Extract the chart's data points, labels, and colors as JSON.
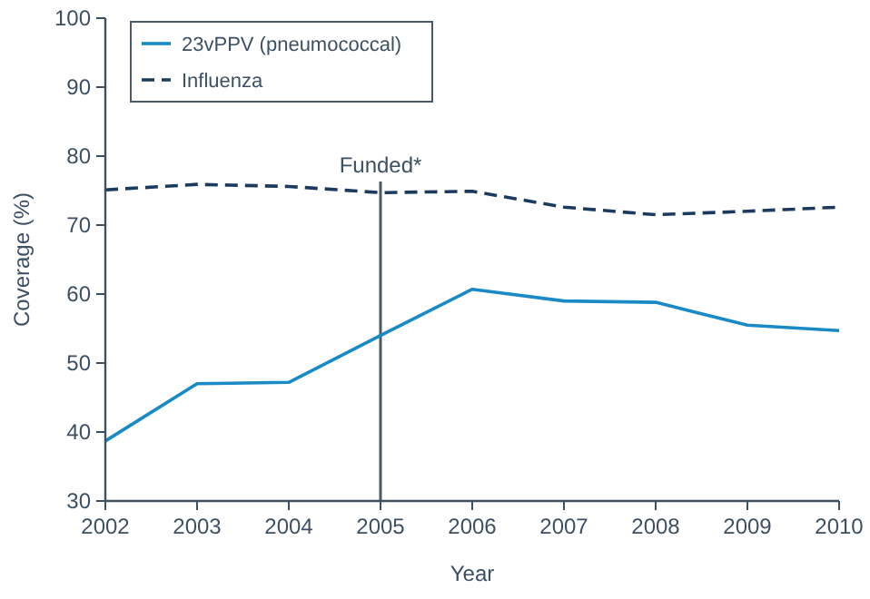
{
  "chart_data": {
    "type": "line",
    "xlabel": "Year",
    "ylabel": "Coverage (%)",
    "x": [
      2002,
      2003,
      2004,
      2005,
      2006,
      2007,
      2008,
      2009,
      2010
    ],
    "series": [
      {
        "name": "23vPPV (pneumococcal)",
        "color": "#1a8ac6",
        "line_style": "solid",
        "values": [
          38.7,
          47,
          47.2,
          54,
          60.7,
          59,
          58.8,
          55.5,
          54.7
        ]
      },
      {
        "name": "Influenza",
        "color": "#1c3a5e",
        "line_style": "dashed",
        "values": [
          75.1,
          75.9,
          75.6,
          74.7,
          74.9,
          72.6,
          71.5,
          72,
          72.6
        ]
      }
    ],
    "xlim": [
      2002,
      2010
    ],
    "xticks": [
      2002,
      2003,
      2004,
      2005,
      2006,
      2007,
      2008,
      2009,
      2010
    ],
    "ylim": [
      30,
      100
    ],
    "yticks": [
      30,
      40,
      50,
      60,
      70,
      80,
      90,
      100
    ],
    "ref_lines": [
      {
        "axis": "x",
        "value": 2005,
        "label": "Funded*",
        "color": "#4a5a6a"
      }
    ],
    "legend": "top left",
    "grid": false,
    "marker": "none"
  }
}
